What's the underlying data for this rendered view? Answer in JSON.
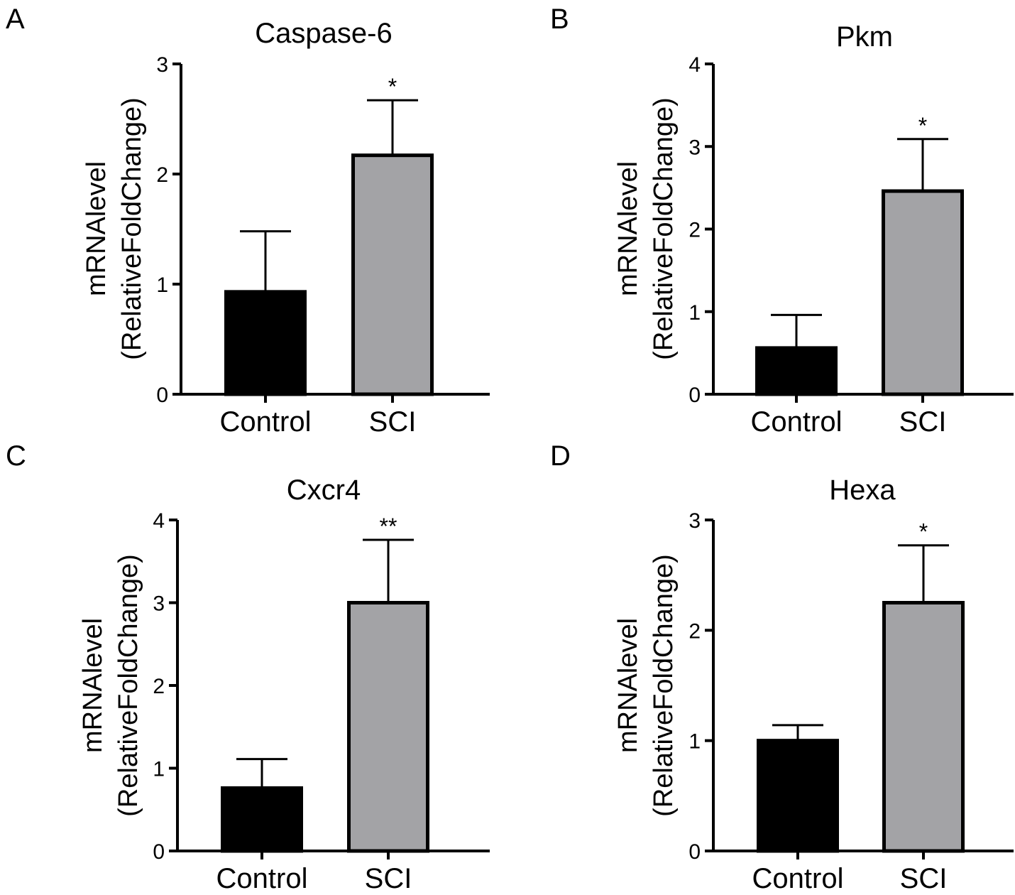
{
  "figure": {
    "ylabel_line1": "mRNAlevel",
    "ylabel_line2": "(RelativeFoldChange)"
  },
  "colors": {
    "control_fill": "#000000",
    "sci_fill": "#a3a3a6",
    "stroke": "#000000"
  },
  "chart_data": [
    {
      "panel": "A",
      "type": "bar",
      "title": "Caspase-6",
      "categories": [
        "Control",
        "SCI"
      ],
      "values": [
        0.93,
        2.17
      ],
      "errors": [
        0.55,
        0.5
      ],
      "significance": [
        "",
        "*"
      ],
      "ylim": [
        0,
        3
      ],
      "yticks": [
        0,
        1,
        2,
        3
      ],
      "xlabel": "",
      "ylabel": "mRNAlevel (RelativeFoldChange)"
    },
    {
      "panel": "B",
      "type": "bar",
      "title": "Pkm",
      "categories": [
        "Control",
        "SCI"
      ],
      "values": [
        0.56,
        2.46
      ],
      "errors": [
        0.4,
        0.63
      ],
      "significance": [
        "",
        "*"
      ],
      "ylim": [
        0,
        4
      ],
      "yticks": [
        0,
        1,
        2,
        3,
        4
      ],
      "xlabel": "",
      "ylabel": "mRNAlevel (RelativeFoldChange)"
    },
    {
      "panel": "C",
      "type": "bar",
      "title": "Cxcr4",
      "categories": [
        "Control",
        "SCI"
      ],
      "values": [
        0.76,
        3.0
      ],
      "errors": [
        0.35,
        0.76
      ],
      "significance": [
        "",
        "**"
      ],
      "ylim": [
        0,
        4
      ],
      "yticks": [
        0,
        1,
        2,
        3,
        4
      ],
      "xlabel": "",
      "ylabel": "mRNAlevel (RelativeFoldChange)"
    },
    {
      "panel": "D",
      "type": "bar",
      "title": "Hexa",
      "categories": [
        "Control",
        "SCI"
      ],
      "values": [
        1.0,
        2.25
      ],
      "errors": [
        0.14,
        0.52
      ],
      "significance": [
        "",
        "*"
      ],
      "ylim": [
        0,
        3
      ],
      "yticks": [
        0,
        1,
        2,
        3
      ],
      "xlabel": "",
      "ylabel": "mRNAlevel (RelativeFoldChange)"
    }
  ]
}
